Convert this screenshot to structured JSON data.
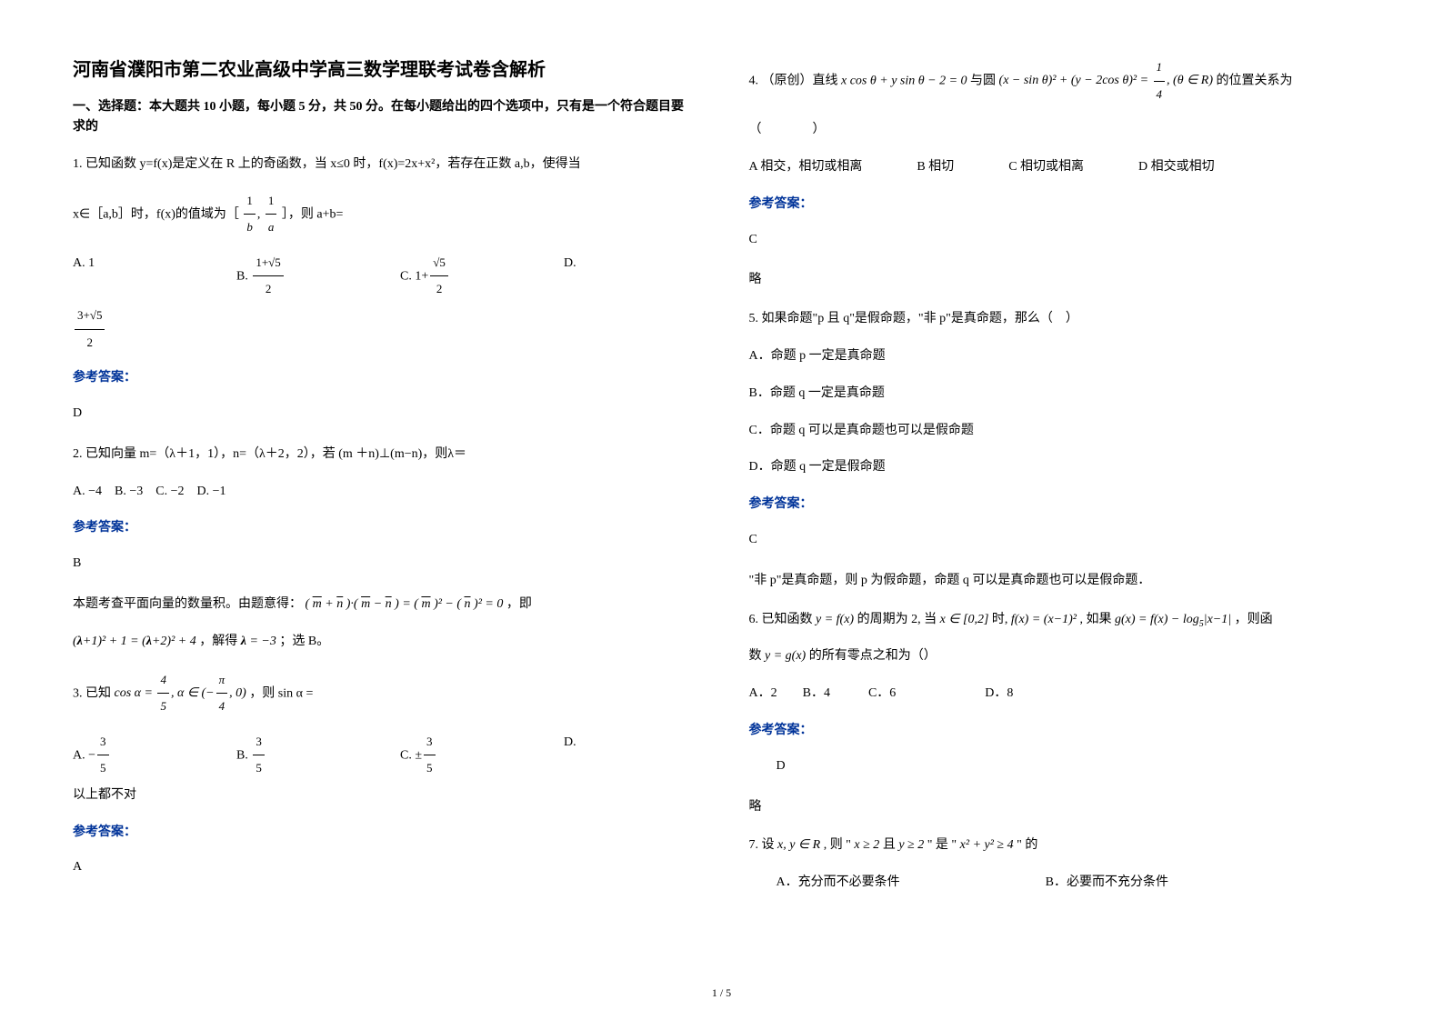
{
  "title": "河南省濮阳市第二农业高级中学高三数学理联考试卷含解析",
  "section1_header": "一、选择题：本大题共 10 小题，每小题 5 分，共 50 分。在每小题给出的四个选项中，只有是一个符合题目要求的",
  "q1": {
    "stem1": "1. 已知函数 y=f(x)是定义在 R 上的奇函数，当 x≤0 时，f(x)=2x+x²，若存在正数 a,b，使得当",
    "stem2": "x∈［a,b］时，f(x)的值域为［",
    "stem3": "］，则 a+b=",
    "optA": "A. 1",
    "optB": "B.",
    "optC": "C.",
    "optD": "D.",
    "answer_label": "参考答案：",
    "answer": "D"
  },
  "q2": {
    "stem": "2. 已知向量 m=（λ＋1，1），n=（λ＋2，2），若 (m ＋n)⊥(m−n)，则λ＝",
    "opts": "A. −4　B. −3　C. −2　D. −1",
    "answer_label": "参考答案：",
    "answer": "B",
    "explain1": "本题考查平面向量的数量积。由题意得：",
    "explain2": "，即",
    "explain3": "，解得",
    "explain4": "；选 B。"
  },
  "q3": {
    "stem1": "3. 已知",
    "stem2": "，则 sin α =",
    "optA": "A.",
    "optB": "B.",
    "optC": "C.",
    "optD": "D.",
    "optD_text": "以上都不对",
    "answer_label": "参考答案：",
    "answer": "A"
  },
  "q4": {
    "stem1": "4. （原创）直线",
    "stem2": "与圆",
    "stem3": "的位置关系为",
    "stem4": "（　　　　）",
    "optA": "A 相交，相切或相离",
    "optB": "B 相切",
    "optC": "C 相切或相离",
    "optD": "D 相交或相切",
    "answer_label": "参考答案：",
    "answer": "C",
    "explain": "略"
  },
  "q5": {
    "stem": "5. 如果命题\"p 且 q\"是假命题，\"非 p\"是真命题，那么（　）",
    "optA": "A．命题 p 一定是真命题",
    "optB": "B．命题 q 一定是真命题",
    "optC": "C．命题 q 可以是真命题也可以是假命题",
    "optD": "D．命题 q 一定是假命题",
    "answer_label": "参考答案：",
    "answer": "C",
    "explain": "\"非 p\"是真命题，则 p 为假命题，命题 q 可以是真命题也可以是假命题．"
  },
  "q6": {
    "stem1": "6. 已知函数",
    "stem2": "的周期为 2, 当",
    "stem3": "时,",
    "stem4": ", 如果",
    "stem5": "，则函",
    "stem6": "数",
    "stem7": "的所有零点之和为（）",
    "opts": "A．2　　B．4　　　C．6　　　　　　　D．8",
    "answer_label": "参考答案：",
    "answer": "D",
    "explain": "略"
  },
  "q7": {
    "stem1": "7. 设",
    "stem2": ", 则 \" ",
    "stem3": " 且 ",
    "stem4": " \" 是 \" ",
    "stem5": " \" 的",
    "optA": "A．充分而不必要条件",
    "optB": "B．必要而不充分条件"
  },
  "page_num": "1 / 5",
  "colors": {
    "text": "#000000",
    "answer_label": "#003399",
    "background": "#ffffff"
  },
  "fonts": {
    "body_size": 14,
    "title_size": 20,
    "family": "SimSun"
  }
}
